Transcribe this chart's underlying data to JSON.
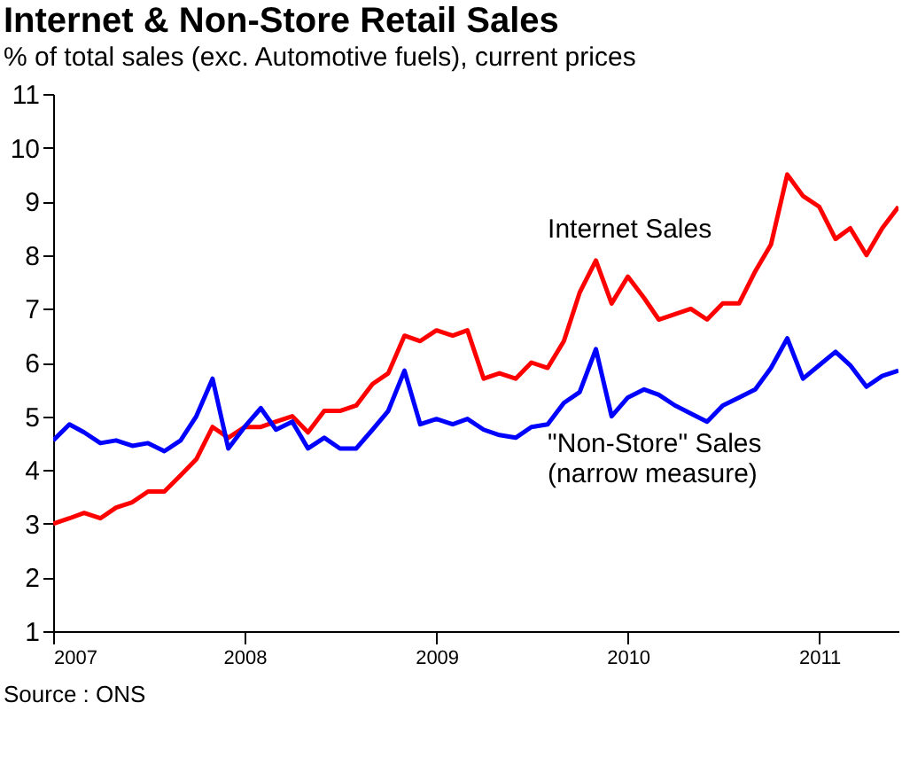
{
  "chart_data": {
    "type": "line",
    "title": "Internet & Non-Store Retail Sales",
    "subtitle": "% of total sales (exc. Automotive fuels), current prices",
    "x": [
      "2007-01",
      "2007-02",
      "2007-03",
      "2007-04",
      "2007-05",
      "2007-06",
      "2007-07",
      "2007-08",
      "2007-09",
      "2007-10",
      "2007-11",
      "2007-12",
      "2008-01",
      "2008-02",
      "2008-03",
      "2008-04",
      "2008-05",
      "2008-06",
      "2008-07",
      "2008-08",
      "2008-09",
      "2008-10",
      "2008-11",
      "2008-12",
      "2009-01",
      "2009-02",
      "2009-03",
      "2009-04",
      "2009-05",
      "2009-06",
      "2009-07",
      "2009-08",
      "2009-09",
      "2009-10",
      "2009-11",
      "2009-12",
      "2010-01",
      "2010-02",
      "2010-03",
      "2010-04",
      "2010-05",
      "2010-06",
      "2010-07",
      "2010-08",
      "2010-09",
      "2010-10",
      "2010-11",
      "2010-12",
      "2011-01",
      "2011-02",
      "2011-03",
      "2011-04",
      "2011-05",
      "2011-06"
    ],
    "series": [
      {
        "name": "Internet Sales",
        "color": "#ff0000",
        "values": [
          3.0,
          3.1,
          3.2,
          3.1,
          3.3,
          3.4,
          3.6,
          3.6,
          3.9,
          4.2,
          4.8,
          4.6,
          4.8,
          4.8,
          4.9,
          5.0,
          4.7,
          5.1,
          5.1,
          5.2,
          5.6,
          5.8,
          6.5,
          6.4,
          6.6,
          6.5,
          6.6,
          5.7,
          5.8,
          5.7,
          6.0,
          5.9,
          6.4,
          7.3,
          7.9,
          7.1,
          7.6,
          7.2,
          6.8,
          6.9,
          7.0,
          6.8,
          7.1,
          7.1,
          7.7,
          8.2,
          9.5,
          9.1,
          8.9,
          8.3,
          8.5,
          8.0,
          8.5,
          8.9
        ]
      },
      {
        "name": "\"Non-Store\" Sales\n(narrow measure)",
        "color": "#0000ff",
        "values": [
          4.55,
          4.85,
          4.7,
          4.5,
          4.55,
          4.45,
          4.5,
          4.35,
          4.55,
          5.0,
          5.7,
          4.4,
          4.8,
          5.15,
          4.75,
          4.9,
          4.4,
          4.6,
          4.4,
          4.4,
          4.75,
          5.1,
          5.85,
          4.85,
          4.95,
          4.85,
          4.95,
          4.75,
          4.65,
          4.6,
          4.8,
          4.85,
          5.25,
          5.45,
          6.25,
          5.0,
          5.35,
          5.5,
          5.4,
          5.2,
          5.05,
          4.9,
          5.2,
          5.35,
          5.5,
          5.9,
          6.45,
          5.7,
          5.95,
          6.2,
          5.95,
          5.55,
          5.75,
          5.85
        ]
      }
    ],
    "xlim": [
      "2007-01",
      "2011-06"
    ],
    "xticks": [
      {
        "value": "2007-01",
        "label": "2007"
      },
      {
        "value": "2008-01",
        "label": "2008"
      },
      {
        "value": "2009-01",
        "label": "2009"
      },
      {
        "value": "2010-01",
        "label": "2010"
      },
      {
        "value": "2011-01",
        "label": "2011"
      }
    ],
    "ylim": [
      1,
      11
    ],
    "yticks": [
      1,
      2,
      3,
      4,
      5,
      6,
      7,
      8,
      9,
      10,
      11
    ],
    "grid": false,
    "legend": false,
    "marker": "none",
    "line_style": "solid",
    "annotations": [
      "Source : ONS"
    ]
  }
}
